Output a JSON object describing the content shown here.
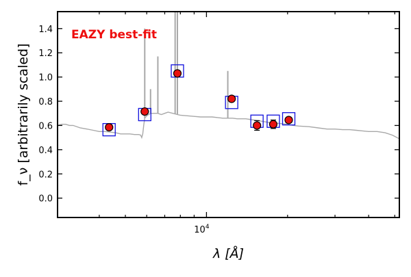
{
  "chart_data": {
    "type": "scatter",
    "title": "",
    "annotation": "EAZY best-fit",
    "xlabel": "λ [Å]",
    "ylabel": "f_ν [arbitrarily scaled]",
    "x_scale": "log",
    "xlim": [
      2800,
      52000
    ],
    "ylim": [
      -0.16,
      1.54
    ],
    "y_ticks": [
      "0.0",
      "0.2",
      "0.4",
      "0.6",
      "0.8",
      "1.0",
      "1.2",
      "1.4"
    ],
    "y_tick_values": [
      0.0,
      0.2,
      0.4,
      0.6,
      0.8,
      1.0,
      1.2,
      1.4
    ],
    "x_major_ticks": [
      10000
    ],
    "x_major_tick_label_base": "10",
    "x_major_tick_label_exp": "4",
    "x_minor_ticks": [
      4000,
      5000,
      6000,
      7000,
      8000,
      9000,
      20000,
      30000,
      40000,
      50000
    ],
    "grid": false,
    "colors": {
      "observed_fill": "#e8120f",
      "observed_edge": "#000000",
      "model_box": "#1010dd",
      "spectrum": "#a8a8a8",
      "annotation": "#ee0d0d",
      "axes": "#000000"
    },
    "observed_photometry": [
      {
        "x": 4350,
        "y": 0.585,
        "err": 0.015
      },
      {
        "x": 5900,
        "y": 0.715,
        "err": 0.015
      },
      {
        "x": 7800,
        "y": 1.03,
        "err": 0.015
      },
      {
        "x": 12400,
        "y": 0.82,
        "err": 0.02
      },
      {
        "x": 15400,
        "y": 0.6,
        "err": 0.04
      },
      {
        "x": 17700,
        "y": 0.61,
        "err": 0.035
      },
      {
        "x": 20200,
        "y": 0.645,
        "err": 0.02
      }
    ],
    "model_photometry": [
      {
        "x": 4350,
        "y": 0.565
      },
      {
        "x": 5900,
        "y": 0.69
      },
      {
        "x": 7800,
        "y": 1.05
      },
      {
        "x": 12400,
        "y": 0.79
      },
      {
        "x": 15400,
        "y": 0.635
      },
      {
        "x": 17700,
        "y": 0.635
      },
      {
        "x": 20200,
        "y": 0.655
      }
    ],
    "model_spectrum": {
      "x": [
        2800,
        2900,
        3000,
        3100,
        3200,
        3400,
        3600,
        3800,
        4000,
        4200,
        4400,
        4600,
        4800,
        5000,
        5200,
        5400,
        5600,
        5700,
        5750,
        5800,
        5850,
        5900,
        6000,
        6200,
        6400,
        6600,
        6800,
        7000,
        7200,
        7500,
        7800,
        8000,
        8500,
        9000,
        9500,
        10000,
        10500,
        11000,
        11500,
        12000,
        12500,
        13000,
        14000,
        15000,
        16000,
        17000,
        18000,
        19000,
        20000,
        21000,
        22000,
        24000,
        26000,
        28000,
        30000,
        32000,
        34000,
        36000,
        38000,
        40000,
        43000,
        46000,
        49000,
        52000
      ],
      "y": [
        0.6,
        0.61,
        0.61,
        0.6,
        0.6,
        0.58,
        0.57,
        0.56,
        0.55,
        0.55,
        0.545,
        0.54,
        0.53,
        0.53,
        0.53,
        0.525,
        0.525,
        0.52,
        0.5,
        0.53,
        0.6,
        0.66,
        0.68,
        0.7,
        0.7,
        0.7,
        0.69,
        0.7,
        0.71,
        0.7,
        0.69,
        0.685,
        0.68,
        0.675,
        0.67,
        0.67,
        0.67,
        0.665,
        0.66,
        0.66,
        0.66,
        0.655,
        0.655,
        0.645,
        0.635,
        0.625,
        0.62,
        0.615,
        0.61,
        0.6,
        0.595,
        0.59,
        0.58,
        0.57,
        0.57,
        0.565,
        0.565,
        0.56,
        0.555,
        0.55,
        0.55,
        0.54,
        0.52,
        0.49
      ]
    },
    "emission_lines": [
      {
        "x": 5900,
        "y": 1.4
      },
      {
        "x": 6200,
        "y": 0.9
      },
      {
        "x": 6600,
        "y": 1.17
      },
      {
        "x": 7650,
        "y": 1.54
      },
      {
        "x": 7800,
        "y": 1.54
      },
      {
        "x": 12000,
        "y": 1.05
      }
    ]
  }
}
